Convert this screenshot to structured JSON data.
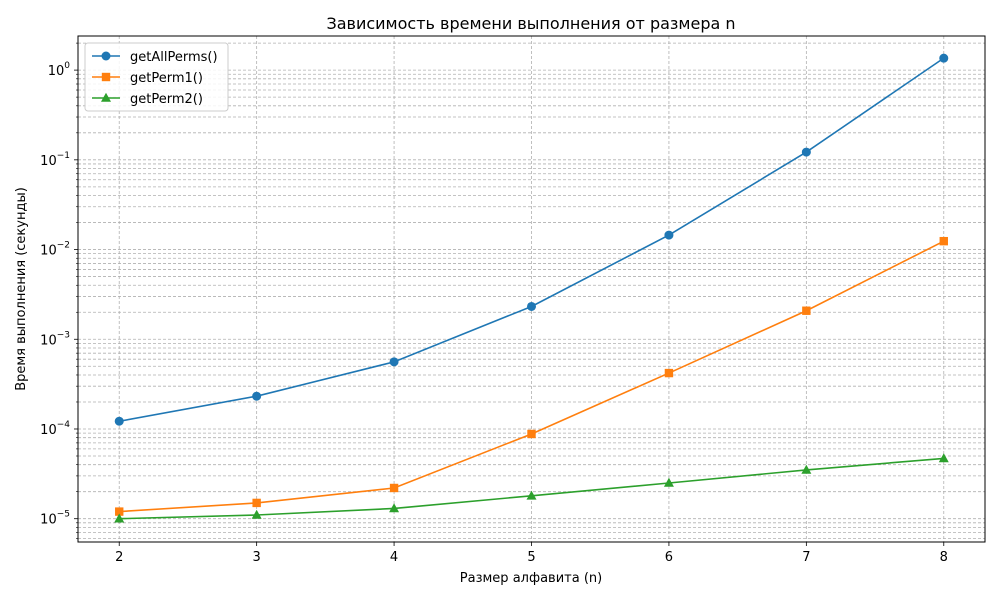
{
  "chart_data": {
    "type": "line",
    "title": "Зависимость времени выполнения от размера n",
    "xlabel": "Размер алфавита (n)",
    "ylabel": "Время выполнения (секунды)",
    "x": [
      2,
      3,
      4,
      5,
      6,
      7,
      8
    ],
    "xlim": [
      1.7,
      8.3
    ],
    "ylim": [
      5.5e-06,
      2.4
    ],
    "yscale": "log",
    "y_ticks": [
      {
        "value": 1e-05,
        "base": "10",
        "exp": "−5"
      },
      {
        "value": 0.0001,
        "base": "10",
        "exp": "−4"
      },
      {
        "value": 0.001,
        "base": "10",
        "exp": "−3"
      },
      {
        "value": 0.01,
        "base": "10",
        "exp": "−2"
      },
      {
        "value": 0.1,
        "base": "10",
        "exp": "−1"
      },
      {
        "value": 1,
        "base": "10",
        "exp": "0"
      }
    ],
    "grid": true,
    "legend_position": "top-left",
    "series": [
      {
        "name": "getAllPerms()",
        "color": "#1f77b4",
        "marker": "circle",
        "values": [
          0.000122,
          0.000232,
          0.00056,
          0.00232,
          0.0145,
          0.122,
          1.36
        ]
      },
      {
        "name": "getPerm1()",
        "color": "#ff7f0e",
        "marker": "square",
        "values": [
          1.2e-05,
          1.5e-05,
          2.2e-05,
          8.8e-05,
          0.00042,
          0.00208,
          0.0124
        ]
      },
      {
        "name": "getPerm2()",
        "color": "#2ca02c",
        "marker": "triangle",
        "values": [
          1e-05,
          1.1e-05,
          1.3e-05,
          1.8e-05,
          2.5e-05,
          3.5e-05,
          4.7e-05
        ]
      }
    ]
  }
}
